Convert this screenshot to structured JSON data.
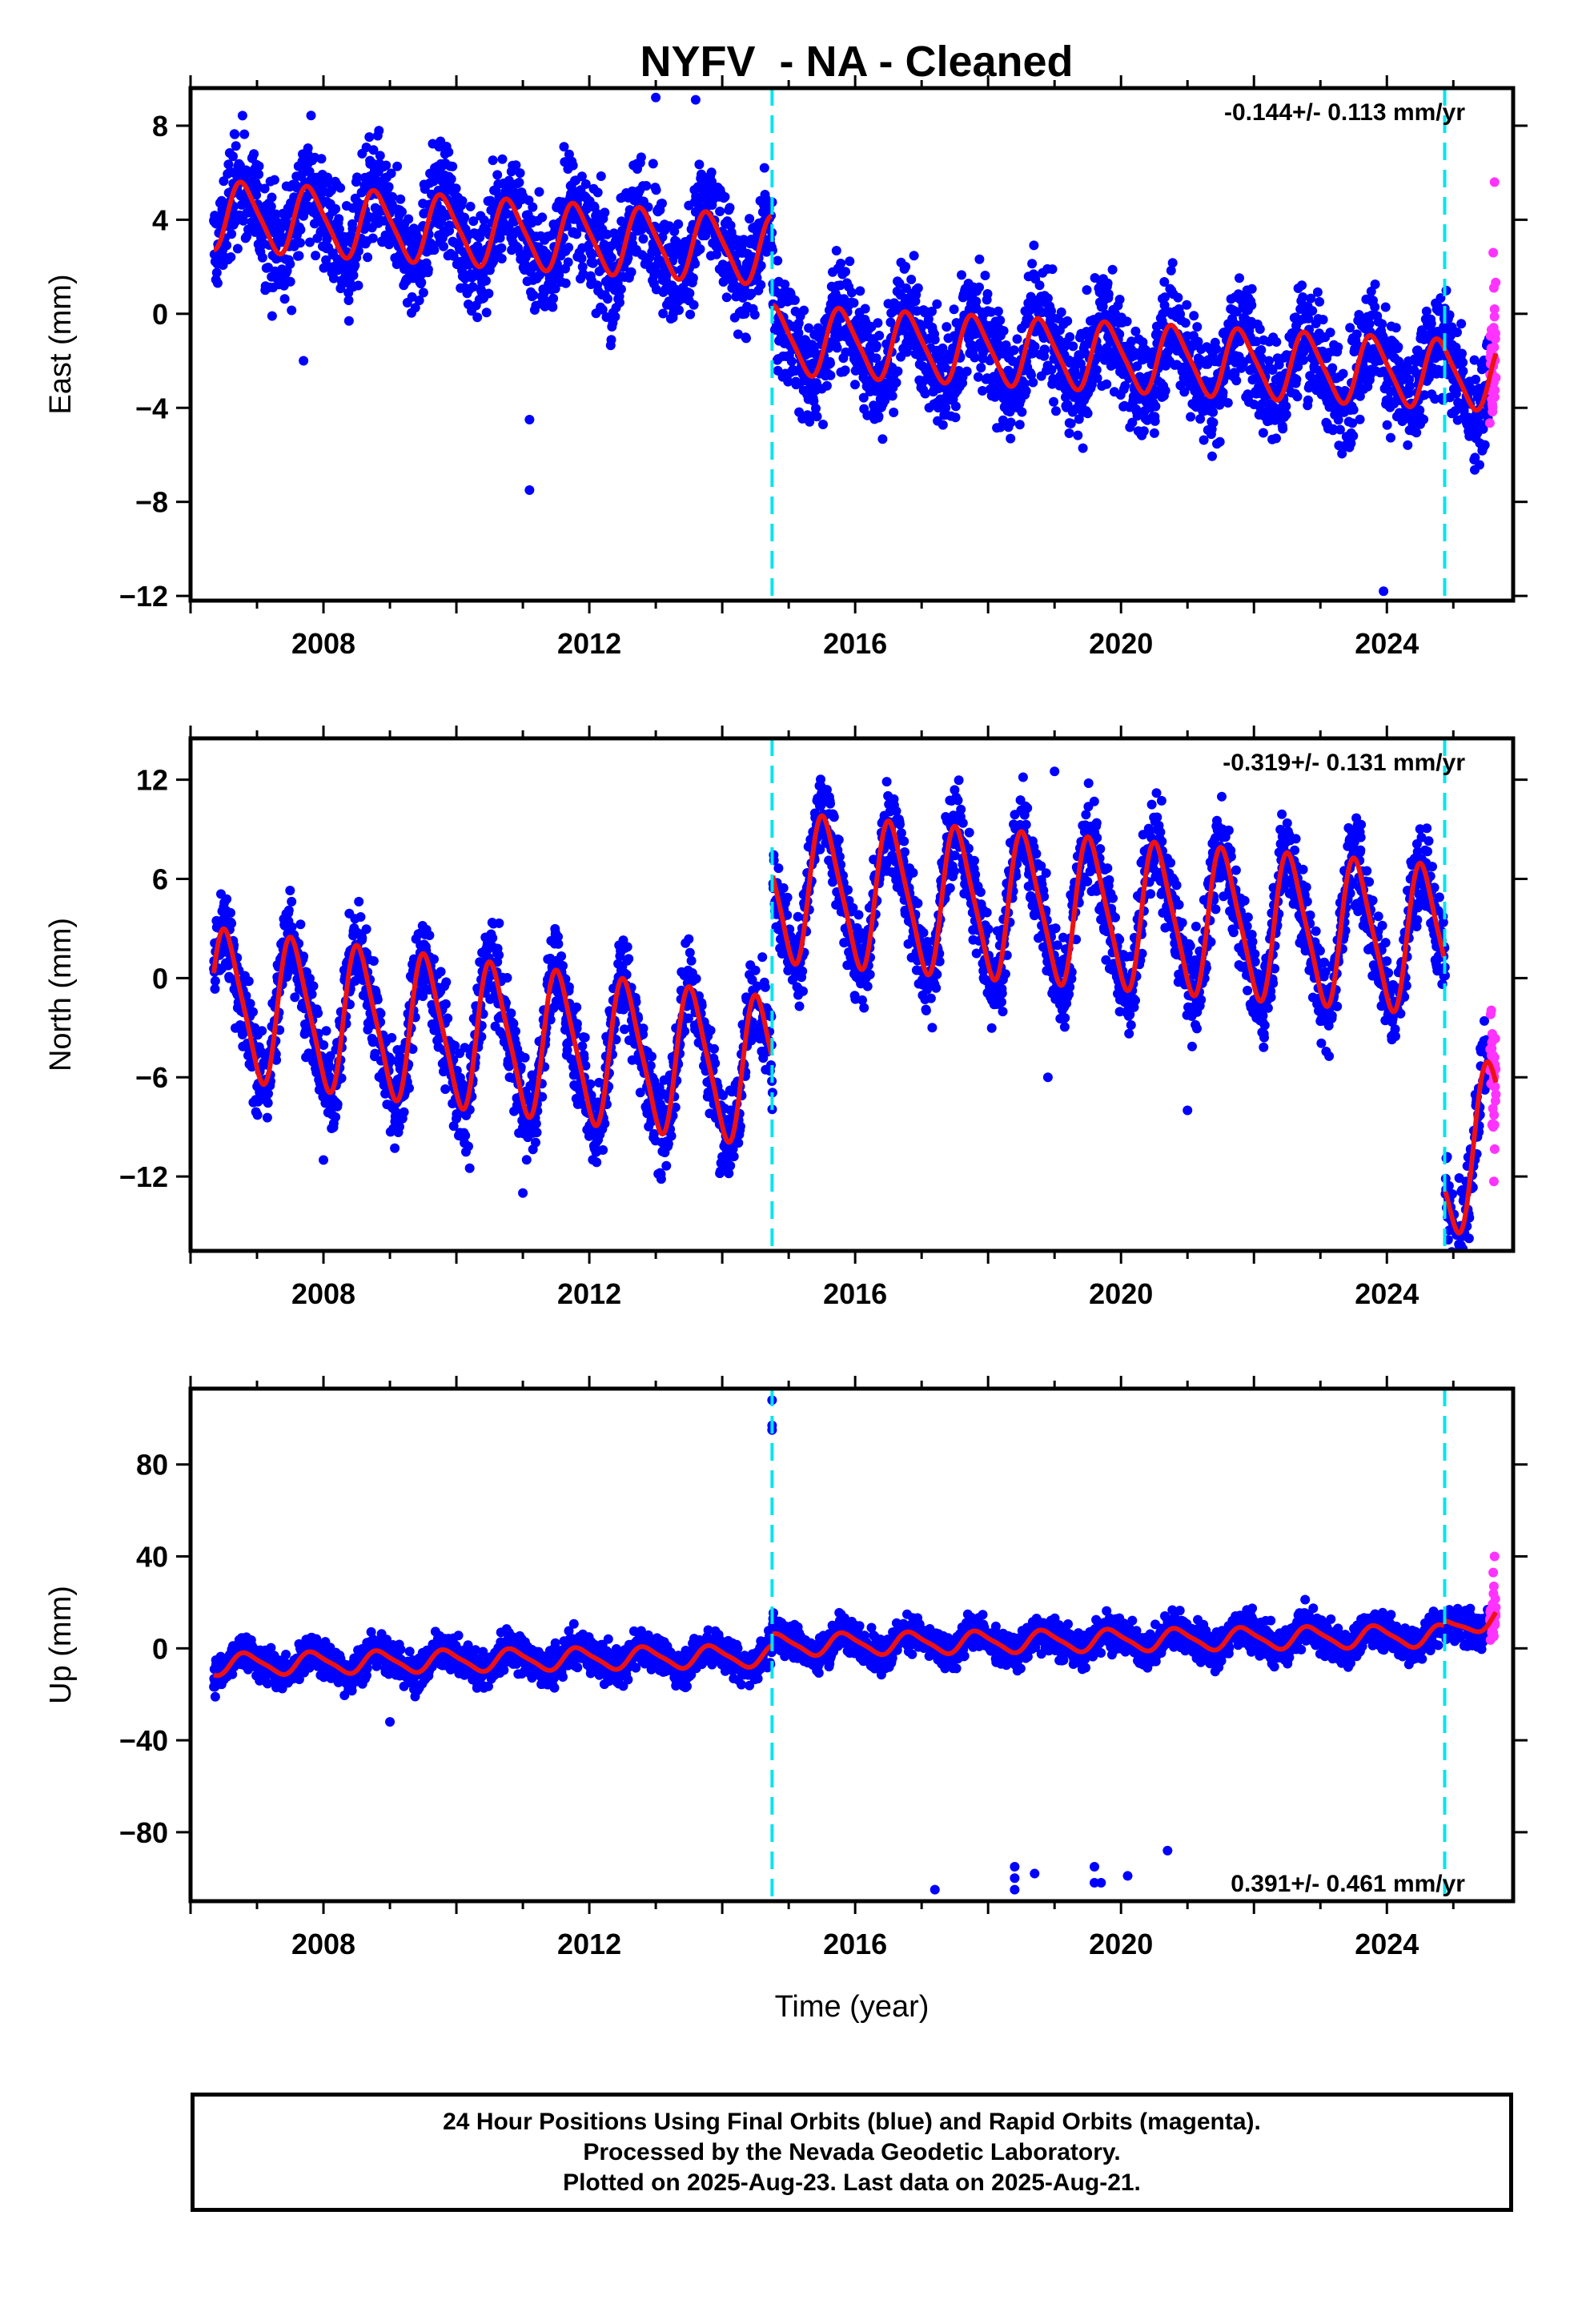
{
  "title": "NYFV  - NA - Cleaned",
  "colors": {
    "final": "#0000ff",
    "rapid": "#ff33ff",
    "model": "#ee1111",
    "offset": "#00e5ee"
  },
  "chart_data": [
    {
      "type": "scatter",
      "component": "East",
      "ylabel": "East (mm)",
      "xlabel": "",
      "xlim": [
        2006.0,
        2025.9
      ],
      "ylim": [
        -12.2,
        9.6
      ],
      "xticks": [
        2008,
        2012,
        2016,
        2020,
        2024
      ],
      "yticks": [
        -12,
        -8,
        -4,
        0,
        4,
        8
      ],
      "grid": false,
      "rate_label": "-0.144+/- 0.113 mm/yr",
      "rate_position": "top-right",
      "offsets": [
        2014.75,
        2024.87
      ],
      "data_start": 2006.35,
      "data_end": 2025.64,
      "rapid_start": 2025.55,
      "model": {
        "segments": [
          [
            2006.35,
            2014.74,
            4.2,
            -0.18
          ],
          [
            2014.76,
            2025.64,
            -1.1,
            -0.144
          ]
        ],
        "annual_amp": 1.4,
        "annual_phase": 0.55,
        "semiannual_amp": 0.25
      },
      "scatter": 1.2,
      "outliers": [
        [
          2011.1,
          -4.5
        ],
        [
          2011.1,
          -7.5
        ],
        [
          2007.7,
          -2.0
        ],
        [
          2023.95,
          -11.8
        ],
        [
          2013.0,
          9.2
        ],
        [
          2013.6,
          9.1
        ]
      ],
      "rapid_extra": [
        [
          2025.62,
          5.6
        ],
        [
          2025.6,
          2.6
        ],
        [
          2025.61,
          1.1
        ],
        [
          2025.62,
          0.2
        ],
        [
          2025.6,
          -3.3
        ]
      ]
    },
    {
      "type": "scatter",
      "component": "North",
      "ylabel": "North (mm)",
      "xlabel": "",
      "xlim": [
        2006.0,
        2025.9
      ],
      "ylim": [
        -16.5,
        14.5
      ],
      "xticks": [
        2008,
        2012,
        2016,
        2020,
        2024
      ],
      "yticks": [
        -12,
        -6,
        0,
        6,
        12
      ],
      "grid": false,
      "rate_label": "-0.319+/- 0.131 mm/yr",
      "rate_position": "top-right",
      "offsets": [
        2014.75,
        2024.87
      ],
      "data_start": 2006.35,
      "data_end": 2025.64,
      "rapid_start": 2025.55,
      "model": {
        "segments": [
          [
            2006.35,
            2014.74,
            -1.5,
            -0.5
          ],
          [
            2014.76,
            2024.86,
            5.5,
            -0.319
          ],
          [
            2024.88,
            2025.64,
            -11.5,
            3.0
          ]
        ],
        "annual_amp": 4.3,
        "annual_phase": 0.3,
        "semiannual_amp": 0.8
      },
      "scatter": 1.4,
      "outliers": [
        [
          2008.0,
          -11.0
        ],
        [
          2010.2,
          -11.5
        ],
        [
          2011.0,
          -13.0
        ],
        [
          2019.0,
          12.5
        ],
        [
          2018.9,
          -6.0
        ],
        [
          2021.0,
          -8.0
        ]
      ],
      "rapid_extra": [
        [
          2025.62,
          -4.8
        ],
        [
          2025.61,
          -12.3
        ],
        [
          2025.6,
          -9.0
        ]
      ]
    },
    {
      "type": "scatter",
      "component": "Up",
      "ylabel": "Up (mm)",
      "xlabel": "Time (year)",
      "xlim": [
        2006.0,
        2025.9
      ],
      "ylim": [
        -110,
        113
      ],
      "xticks": [
        2008,
        2012,
        2016,
        2020,
        2024
      ],
      "yticks": [
        -80,
        -40,
        0,
        40,
        80
      ],
      "grid": false,
      "rate_label": "0.391+/- 0.461 mm/yr",
      "rate_position": "bottom-right",
      "offsets": [
        2014.75,
        2024.87
      ],
      "data_start": 2006.35,
      "data_end": 2025.64,
      "rapid_start": 2025.55,
      "model": {
        "segments": [
          [
            2006.35,
            2014.74,
            -7.0,
            0.45
          ],
          [
            2014.76,
            2024.86,
            1.5,
            0.391
          ],
          [
            2024.88,
            2025.64,
            8.0,
            8.0
          ]
        ],
        "annual_amp": 4.5,
        "annual_phase": 0.6,
        "semiannual_amp": 1.0
      },
      "scatter": 4.0,
      "outliers": [
        [
          2014.75,
          108
        ],
        [
          2014.75,
          97
        ],
        [
          2014.75,
          95
        ],
        [
          2017.2,
          -105
        ],
        [
          2018.4,
          -105
        ],
        [
          2018.4,
          -100
        ],
        [
          2018.4,
          -95
        ],
        [
          2018.7,
          -98
        ],
        [
          2019.6,
          -95
        ],
        [
          2019.6,
          -102
        ],
        [
          2019.7,
          -102
        ],
        [
          2020.1,
          -99
        ],
        [
          2020.7,
          -88
        ],
        [
          2009.0,
          -32
        ]
      ],
      "rapid_extra": [
        [
          2025.62,
          40
        ],
        [
          2025.6,
          33
        ],
        [
          2025.61,
          27
        ],
        [
          2025.62,
          10
        ]
      ]
    }
  ],
  "footer": {
    "line1": "24 Hour Positions Using Final Orbits (blue) and Rapid Orbits (magenta).",
    "line2": "Processed by the Nevada Geodetic Laboratory.",
    "line3": "Plotted on 2025-Aug-23. Last data on 2025-Aug-21."
  }
}
